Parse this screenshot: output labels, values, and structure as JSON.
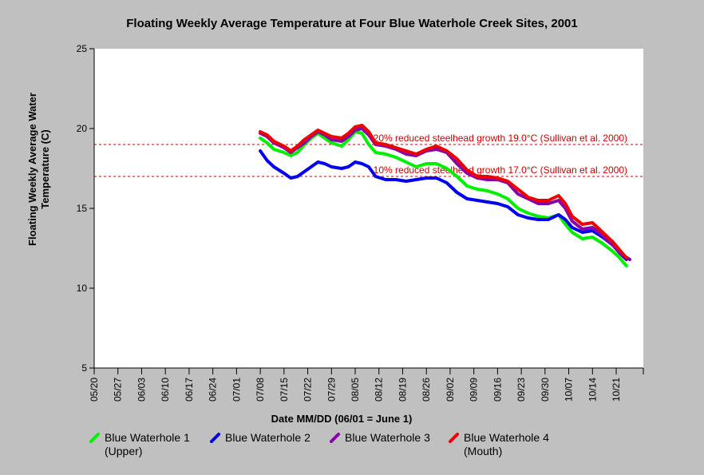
{
  "chart_data": {
    "type": "line",
    "title": "Floating Weekly Average Temperature at Four Blue Waterhole Creek Sites, 2001",
    "xlabel": "Date MM/DD (06/01 = June 1)",
    "ylabel_lines": [
      "Floating Weekly Average Water",
      "Temperature (C)"
    ],
    "xlim": [
      "05/20",
      "10/29"
    ],
    "ylim": [
      5,
      25
    ],
    "yticks": [
      5,
      10,
      15,
      20,
      25
    ],
    "xticks": [
      "05/20",
      "05/27",
      "06/03",
      "06/10",
      "06/17",
      "06/24",
      "07/01",
      "07/08",
      "07/15",
      "07/22",
      "07/29",
      "08/05",
      "08/12",
      "08/19",
      "08/26",
      "09/02",
      "09/09",
      "09/16",
      "09/23",
      "09/30",
      "10/07",
      "10/14",
      "10/21"
    ],
    "legend_position": "bottom",
    "thresholds": [
      {
        "value": 19.0,
        "label": "20% reduced steelhead growth 19.0°C (Sullivan et al. 2000)",
        "color": "#cc0000"
      },
      {
        "value": 17.0,
        "label": "10% reduced steelhead growth 17.0°C (Sullivan et al. 2000)",
        "color": "#cc0000"
      }
    ],
    "series": [
      {
        "name": "Blue Waterhole 1 (Upper)",
        "legend_lines": [
          "Blue Waterhole 1",
          "(Upper)"
        ],
        "color": "#00ee00",
        "points": [
          [
            "07/08",
            19.4
          ],
          [
            "07/10",
            19.1
          ],
          [
            "07/12",
            18.7
          ],
          [
            "07/15",
            18.5
          ],
          [
            "07/17",
            18.3
          ],
          [
            "07/19",
            18.5
          ],
          [
            "07/21",
            19.0
          ],
          [
            "07/23",
            19.4
          ],
          [
            "07/25",
            19.7
          ],
          [
            "07/27",
            19.4
          ],
          [
            "07/29",
            19.1
          ],
          [
            "08/01",
            18.9
          ],
          [
            "08/03",
            19.3
          ],
          [
            "08/05",
            19.8
          ],
          [
            "08/07",
            19.7
          ],
          [
            "08/09",
            19.0
          ],
          [
            "08/11",
            18.5
          ],
          [
            "08/14",
            18.4
          ],
          [
            "08/17",
            18.2
          ],
          [
            "08/20",
            17.9
          ],
          [
            "08/23",
            17.6
          ],
          [
            "08/26",
            17.8
          ],
          [
            "08/29",
            17.8
          ],
          [
            "09/01",
            17.5
          ],
          [
            "09/04",
            17.0
          ],
          [
            "09/07",
            16.4
          ],
          [
            "09/10",
            16.2
          ],
          [
            "09/13",
            16.1
          ],
          [
            "09/16",
            15.9
          ],
          [
            "09/19",
            15.6
          ],
          [
            "09/22",
            15.0
          ],
          [
            "09/25",
            14.7
          ],
          [
            "09/28",
            14.5
          ],
          [
            "10/01",
            14.4
          ],
          [
            "10/04",
            14.6
          ],
          [
            "10/06",
            14.0
          ],
          [
            "10/08",
            13.5
          ],
          [
            "10/11",
            13.1
          ],
          [
            "10/14",
            13.2
          ],
          [
            "10/17",
            12.8
          ],
          [
            "10/20",
            12.3
          ],
          [
            "10/22",
            11.9
          ],
          [
            "10/24",
            11.4
          ]
        ]
      },
      {
        "name": "Blue Waterhole 2",
        "legend_lines": [
          "Blue Waterhole 2"
        ],
        "color": "#0000ee",
        "points": [
          [
            "07/08",
            18.6
          ],
          [
            "07/10",
            18.0
          ],
          [
            "07/12",
            17.6
          ],
          [
            "07/15",
            17.2
          ],
          [
            "07/17",
            16.9
          ],
          [
            "07/19",
            17.0
          ],
          [
            "07/21",
            17.3
          ],
          [
            "07/23",
            17.6
          ],
          [
            "07/25",
            17.9
          ],
          [
            "07/27",
            17.8
          ],
          [
            "07/29",
            17.6
          ],
          [
            "08/01",
            17.5
          ],
          [
            "08/03",
            17.6
          ],
          [
            "08/05",
            17.9
          ],
          [
            "08/07",
            17.8
          ],
          [
            "08/09",
            17.6
          ],
          [
            "08/11",
            17.0
          ],
          [
            "08/14",
            16.8
          ],
          [
            "08/17",
            16.8
          ],
          [
            "08/20",
            16.7
          ],
          [
            "08/23",
            16.8
          ],
          [
            "08/26",
            16.9
          ],
          [
            "08/29",
            16.9
          ],
          [
            "09/01",
            16.6
          ],
          [
            "09/04",
            16.0
          ],
          [
            "09/07",
            15.6
          ],
          [
            "09/10",
            15.5
          ],
          [
            "09/13",
            15.4
          ],
          [
            "09/16",
            15.3
          ],
          [
            "09/19",
            15.1
          ],
          [
            "09/22",
            14.6
          ],
          [
            "09/25",
            14.4
          ],
          [
            "09/28",
            14.3
          ],
          [
            "10/01",
            14.3
          ],
          [
            "10/04",
            14.6
          ],
          [
            "10/06",
            14.3
          ],
          [
            "10/08",
            13.8
          ],
          [
            "10/11",
            13.5
          ],
          [
            "10/14",
            13.6
          ],
          [
            "10/17",
            13.2
          ],
          [
            "10/20",
            12.7
          ],
          [
            "10/22",
            12.2
          ],
          [
            "10/24",
            11.8
          ]
        ]
      },
      {
        "name": "Blue Waterhole 3",
        "legend_lines": [
          "Blue Waterhole 3"
        ],
        "color": "#8800aa",
        "points": [
          [
            "07/08",
            19.7
          ],
          [
            "07/10",
            19.5
          ],
          [
            "07/12",
            19.1
          ],
          [
            "07/15",
            18.8
          ],
          [
            "07/17",
            18.5
          ],
          [
            "07/19",
            18.8
          ],
          [
            "07/21",
            19.1
          ],
          [
            "07/23",
            19.5
          ],
          [
            "07/25",
            19.8
          ],
          [
            "07/27",
            19.6
          ],
          [
            "07/29",
            19.3
          ],
          [
            "08/01",
            19.2
          ],
          [
            "08/03",
            19.5
          ],
          [
            "08/05",
            19.9
          ],
          [
            "08/07",
            20.0
          ],
          [
            "08/09",
            19.6
          ],
          [
            "08/11",
            19.0
          ],
          [
            "08/14",
            18.9
          ],
          [
            "08/17",
            18.7
          ],
          [
            "08/20",
            18.4
          ],
          [
            "08/23",
            18.3
          ],
          [
            "08/26",
            18.6
          ],
          [
            "08/29",
            18.7
          ],
          [
            "09/01",
            18.5
          ],
          [
            "09/04",
            17.8
          ],
          [
            "09/07",
            17.2
          ],
          [
            "09/10",
            16.9
          ],
          [
            "09/13",
            16.8
          ],
          [
            "09/16",
            16.8
          ],
          [
            "09/19",
            16.6
          ],
          [
            "09/22",
            15.9
          ],
          [
            "09/25",
            15.6
          ],
          [
            "09/28",
            15.3
          ],
          [
            "10/01",
            15.3
          ],
          [
            "10/04",
            15.5
          ],
          [
            "10/06",
            15.0
          ],
          [
            "10/08",
            14.2
          ],
          [
            "10/11",
            13.7
          ],
          [
            "10/14",
            13.8
          ],
          [
            "10/17",
            13.3
          ],
          [
            "10/20",
            12.7
          ],
          [
            "10/22",
            12.2
          ],
          [
            "10/25",
            11.8
          ]
        ]
      },
      {
        "name": "Blue Waterhole 4 (Mouth)",
        "legend_lines": [
          "Blue Waterhole 4",
          "(Mouth)"
        ],
        "color": "#ee0000",
        "points": [
          [
            "07/08",
            19.8
          ],
          [
            "07/10",
            19.6
          ],
          [
            "07/12",
            19.2
          ],
          [
            "07/15",
            18.9
          ],
          [
            "07/17",
            18.6
          ],
          [
            "07/19",
            18.9
          ],
          [
            "07/21",
            19.3
          ],
          [
            "07/23",
            19.6
          ],
          [
            "07/25",
            19.9
          ],
          [
            "07/27",
            19.7
          ],
          [
            "07/29",
            19.5
          ],
          [
            "08/01",
            19.4
          ],
          [
            "08/03",
            19.7
          ],
          [
            "08/05",
            20.1
          ],
          [
            "08/07",
            20.2
          ],
          [
            "08/09",
            19.8
          ],
          [
            "08/11",
            19.1
          ],
          [
            "08/14",
            19.0
          ],
          [
            "08/17",
            18.8
          ],
          [
            "08/20",
            18.6
          ],
          [
            "08/23",
            18.4
          ],
          [
            "08/26",
            18.7
          ],
          [
            "08/29",
            18.9
          ],
          [
            "09/01",
            18.6
          ],
          [
            "09/04",
            18.1
          ],
          [
            "09/07",
            17.4
          ],
          [
            "09/10",
            17.0
          ],
          [
            "09/13",
            17.0
          ],
          [
            "09/16",
            16.9
          ],
          [
            "09/19",
            16.7
          ],
          [
            "09/22",
            16.2
          ],
          [
            "09/25",
            15.7
          ],
          [
            "09/28",
            15.5
          ],
          [
            "10/01",
            15.5
          ],
          [
            "10/04",
            15.8
          ],
          [
            "10/06",
            15.3
          ],
          [
            "10/08",
            14.5
          ],
          [
            "10/11",
            14.0
          ],
          [
            "10/14",
            14.1
          ],
          [
            "10/17",
            13.5
          ],
          [
            "10/20",
            12.9
          ],
          [
            "10/22",
            12.4
          ],
          [
            "10/24",
            11.9
          ]
        ]
      }
    ]
  }
}
